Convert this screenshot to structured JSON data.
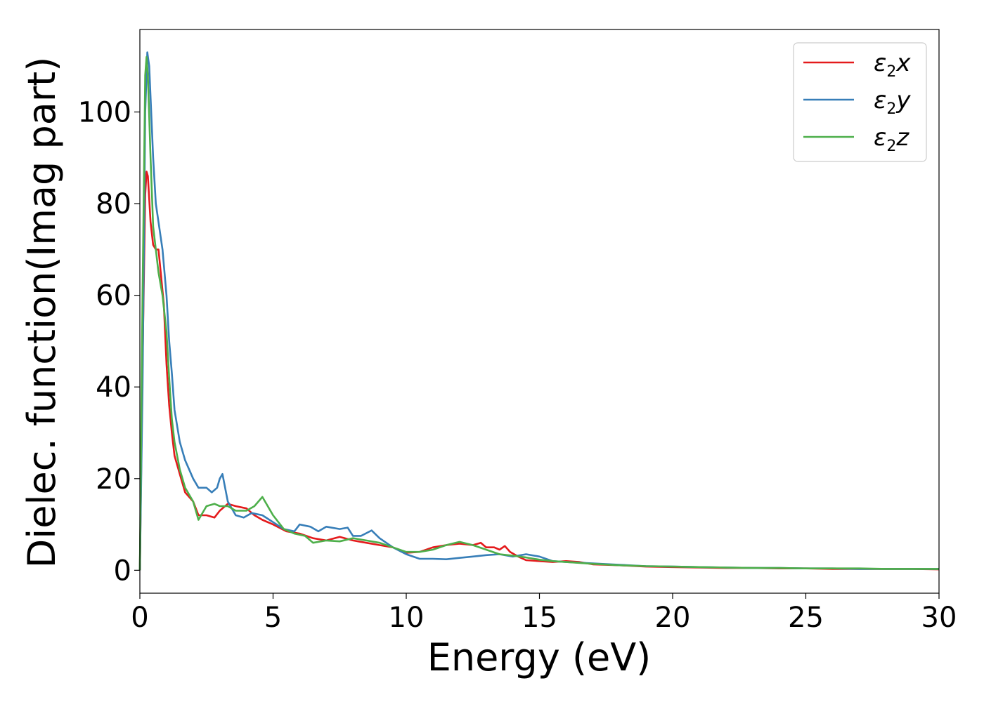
{
  "chart_data": {
    "type": "line",
    "xlabel": "Energy (eV)",
    "ylabel": "Dielec. function(Imag part)",
    "xlim": [
      0,
      30
    ],
    "ylim": [
      -5,
      118
    ],
    "x_ticks": [
      0,
      5,
      10,
      15,
      20,
      25,
      30
    ],
    "y_ticks": [
      0,
      20,
      40,
      60,
      80,
      100
    ],
    "grid": false,
    "legend_position": "top-right",
    "series": [
      {
        "name": "ε2x",
        "label_base": "ε",
        "label_sub": "2",
        "label_var": "x",
        "color": "#e41a1c",
        "points": [
          [
            0,
            0
          ],
          [
            0.1,
            45
          ],
          [
            0.2,
            82
          ],
          [
            0.25,
            87
          ],
          [
            0.3,
            86
          ],
          [
            0.4,
            76
          ],
          [
            0.5,
            71
          ],
          [
            0.6,
            70
          ],
          [
            0.7,
            70
          ],
          [
            0.8,
            64
          ],
          [
            0.9,
            58
          ],
          [
            1.0,
            45
          ],
          [
            1.1,
            36
          ],
          [
            1.2,
            30
          ],
          [
            1.3,
            25
          ],
          [
            1.5,
            21
          ],
          [
            1.7,
            17
          ],
          [
            2.0,
            15
          ],
          [
            2.2,
            12
          ],
          [
            2.5,
            12
          ],
          [
            2.8,
            11.5
          ],
          [
            3.0,
            13
          ],
          [
            3.3,
            14.5
          ],
          [
            3.6,
            14
          ],
          [
            4.0,
            13.5
          ],
          [
            4.3,
            12
          ],
          [
            4.6,
            11
          ],
          [
            5.0,
            10
          ],
          [
            5.5,
            8.5
          ],
          [
            6.0,
            8
          ],
          [
            6.5,
            7
          ],
          [
            7.0,
            6.5
          ],
          [
            7.5,
            7.3
          ],
          [
            8.0,
            6.5
          ],
          [
            8.5,
            6
          ],
          [
            9.0,
            5.5
          ],
          [
            9.5,
            5
          ],
          [
            10.0,
            3.8
          ],
          [
            10.5,
            4
          ],
          [
            11.0,
            5
          ],
          [
            11.5,
            5.5
          ],
          [
            12.0,
            5.8
          ],
          [
            12.5,
            5.5
          ],
          [
            12.8,
            6
          ],
          [
            13.0,
            5
          ],
          [
            13.3,
            5
          ],
          [
            13.5,
            4.5
          ],
          [
            13.7,
            5.3
          ],
          [
            13.9,
            4
          ],
          [
            14.2,
            3
          ],
          [
            14.5,
            2.2
          ],
          [
            15.0,
            2
          ],
          [
            15.5,
            1.8
          ],
          [
            16.0,
            2
          ],
          [
            16.5,
            1.8
          ],
          [
            17.0,
            1.3
          ],
          [
            18.0,
            1.1
          ],
          [
            19.0,
            0.8
          ],
          [
            20.0,
            0.7
          ],
          [
            21.0,
            0.6
          ],
          [
            22.0,
            0.5
          ],
          [
            23.0,
            0.5
          ],
          [
            24.0,
            0.4
          ],
          [
            25.0,
            0.4
          ],
          [
            26.0,
            0.3
          ],
          [
            27.0,
            0.3
          ],
          [
            28.0,
            0.3
          ],
          [
            29.0,
            0.3
          ],
          [
            30.0,
            0.2
          ]
        ]
      },
      {
        "name": "ε2y",
        "label_base": "ε",
        "label_sub": "2",
        "label_var": "y",
        "color": "#377eb8",
        "points": [
          [
            0,
            0
          ],
          [
            0.1,
            40
          ],
          [
            0.2,
            100
          ],
          [
            0.28,
            113
          ],
          [
            0.35,
            110
          ],
          [
            0.5,
            90
          ],
          [
            0.6,
            80
          ],
          [
            0.7,
            76
          ],
          [
            0.85,
            70
          ],
          [
            1.0,
            60
          ],
          [
            1.1,
            50
          ],
          [
            1.2,
            43
          ],
          [
            1.3,
            35
          ],
          [
            1.5,
            28
          ],
          [
            1.7,
            24
          ],
          [
            2.0,
            20
          ],
          [
            2.2,
            18
          ],
          [
            2.5,
            18
          ],
          [
            2.7,
            17
          ],
          [
            2.9,
            18
          ],
          [
            3.0,
            20
          ],
          [
            3.1,
            21
          ],
          [
            3.3,
            15
          ],
          [
            3.6,
            12
          ],
          [
            3.9,
            11.5
          ],
          [
            4.2,
            12.5
          ],
          [
            4.6,
            12
          ],
          [
            5.0,
            10.5
          ],
          [
            5.4,
            9
          ],
          [
            5.8,
            8.5
          ],
          [
            6.0,
            10
          ],
          [
            6.4,
            9.5
          ],
          [
            6.7,
            8.5
          ],
          [
            7.0,
            9.5
          ],
          [
            7.5,
            9
          ],
          [
            7.8,
            9.3
          ],
          [
            8.0,
            7.5
          ],
          [
            8.3,
            7.5
          ],
          [
            8.7,
            8.7
          ],
          [
            9.0,
            7
          ],
          [
            9.5,
            5
          ],
          [
            10.0,
            3.5
          ],
          [
            10.5,
            2.5
          ],
          [
            11.0,
            2.5
          ],
          [
            11.5,
            2.4
          ],
          [
            12.0,
            2.7
          ],
          [
            12.5,
            3
          ],
          [
            13.0,
            3.3
          ],
          [
            13.5,
            3.5
          ],
          [
            14.0,
            3
          ],
          [
            14.5,
            3.5
          ],
          [
            15.0,
            3
          ],
          [
            15.5,
            2
          ],
          [
            16.0,
            1.8
          ],
          [
            17.0,
            1.5
          ],
          [
            18.0,
            1.2
          ],
          [
            19.0,
            0.9
          ],
          [
            20.0,
            0.8
          ],
          [
            21.0,
            0.7
          ],
          [
            22.0,
            0.6
          ],
          [
            23.0,
            0.5
          ],
          [
            24.0,
            0.5
          ],
          [
            25.0,
            0.4
          ],
          [
            26.0,
            0.4
          ],
          [
            27.0,
            0.3
          ],
          [
            28.0,
            0.3
          ],
          [
            29.0,
            0.3
          ],
          [
            30.0,
            0.3
          ]
        ]
      },
      {
        "name": "ε2z",
        "label_base": "ε",
        "label_sub": "2",
        "label_var": "z",
        "color": "#4daf4a",
        "points": [
          [
            0,
            0
          ],
          [
            0.1,
            60
          ],
          [
            0.2,
            108
          ],
          [
            0.25,
            112
          ],
          [
            0.3,
            108
          ],
          [
            0.4,
            90
          ],
          [
            0.5,
            75
          ],
          [
            0.6,
            70
          ],
          [
            0.7,
            65
          ],
          [
            0.85,
            60
          ],
          [
            1.0,
            52
          ],
          [
            1.1,
            42
          ],
          [
            1.2,
            33
          ],
          [
            1.3,
            28
          ],
          [
            1.5,
            22
          ],
          [
            1.7,
            18
          ],
          [
            2.0,
            15
          ],
          [
            2.2,
            11
          ],
          [
            2.5,
            14
          ],
          [
            2.8,
            14.5
          ],
          [
            3.0,
            14
          ],
          [
            3.3,
            14
          ],
          [
            3.6,
            13
          ],
          [
            4.0,
            13
          ],
          [
            4.3,
            14
          ],
          [
            4.6,
            16
          ],
          [
            5.0,
            12
          ],
          [
            5.4,
            9
          ],
          [
            5.8,
            8
          ],
          [
            6.2,
            7.5
          ],
          [
            6.5,
            6
          ],
          [
            7.0,
            6.5
          ],
          [
            7.5,
            6.3
          ],
          [
            8.0,
            7
          ],
          [
            8.5,
            6.5
          ],
          [
            9.0,
            6
          ],
          [
            9.5,
            5
          ],
          [
            10.0,
            4
          ],
          [
            10.5,
            4
          ],
          [
            11.0,
            4.5
          ],
          [
            11.5,
            5.5
          ],
          [
            12.0,
            6.2
          ],
          [
            12.5,
            5.5
          ],
          [
            13.0,
            4.5
          ],
          [
            13.5,
            3.5
          ],
          [
            14.0,
            3.2
          ],
          [
            14.5,
            2.8
          ],
          [
            15.0,
            2.3
          ],
          [
            15.5,
            2
          ],
          [
            16.0,
            1.8
          ],
          [
            17.0,
            1.4
          ],
          [
            18.0,
            1.1
          ],
          [
            19.0,
            0.9
          ],
          [
            20.0,
            0.8
          ],
          [
            21.0,
            0.7
          ],
          [
            22.0,
            0.6
          ],
          [
            23.0,
            0.5
          ],
          [
            24.0,
            0.5
          ],
          [
            25.0,
            0.4
          ],
          [
            26.0,
            0.4
          ],
          [
            27.0,
            0.4
          ],
          [
            28.0,
            0.3
          ],
          [
            29.0,
            0.3
          ],
          [
            30.0,
            0.3
          ]
        ]
      }
    ]
  }
}
